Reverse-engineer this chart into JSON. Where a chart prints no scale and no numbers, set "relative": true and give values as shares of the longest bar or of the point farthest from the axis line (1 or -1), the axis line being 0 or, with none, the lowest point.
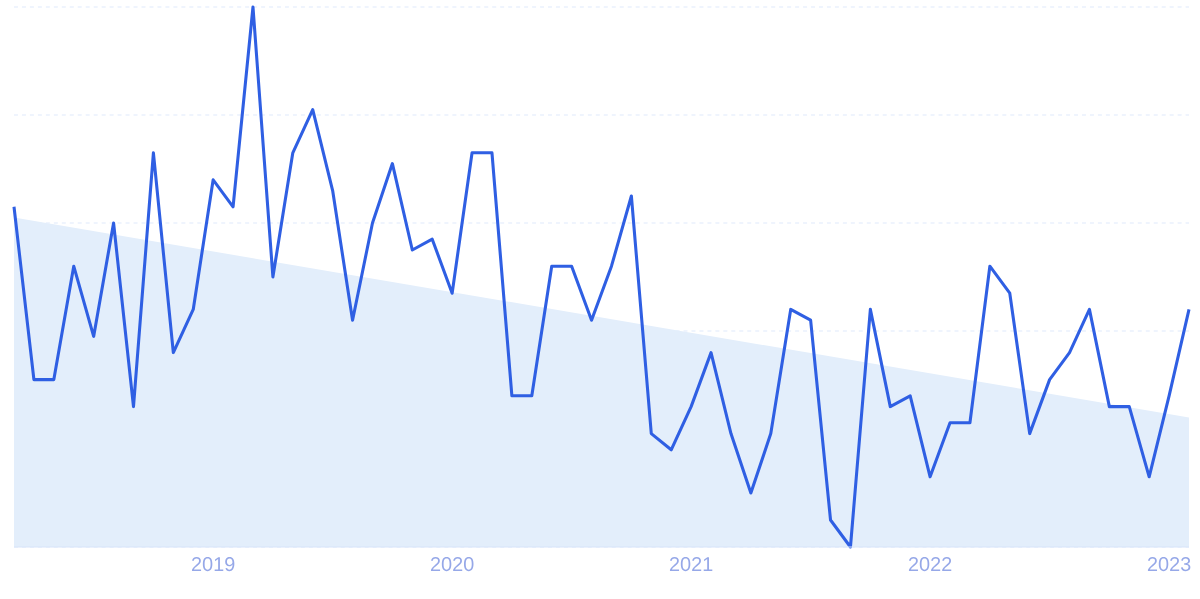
{
  "chart_data": {
    "type": "line",
    "relative": true,
    "grid": "y",
    "line_style": "solid",
    "x": [
      "2018-03",
      "2018-04",
      "2018-05",
      "2018-06",
      "2018-07",
      "2018-08",
      "2018-09",
      "2018-10",
      "2018-11",
      "2018-12",
      "2019-01",
      "2019-02",
      "2019-03",
      "2019-04",
      "2019-05",
      "2019-06",
      "2019-07",
      "2019-08",
      "2019-09",
      "2019-10",
      "2019-11",
      "2019-12",
      "2020-01",
      "2020-02",
      "2020-03",
      "2020-04",
      "2020-05",
      "2020-06",
      "2020-07",
      "2020-08",
      "2020-09",
      "2020-10",
      "2020-11",
      "2020-12",
      "2021-01",
      "2021-02",
      "2021-03",
      "2021-04",
      "2021-05",
      "2021-06",
      "2021-07",
      "2021-08",
      "2021-09",
      "2021-10",
      "2021-11",
      "2021-12",
      "2022-01",
      "2022-02",
      "2022-03",
      "2022-04",
      "2022-05",
      "2022-06",
      "2022-07",
      "2022-08",
      "2022-09",
      "2022-10",
      "2022-11",
      "2022-12",
      "2023-01",
      "2023-02"
    ],
    "xlim": [
      "2018-03",
      "2023-02"
    ],
    "xticks": [
      "2019",
      "2020",
      "2021",
      "2022",
      "2023"
    ],
    "series": [
      {
        "type": "area",
        "color": "#e3eefb",
        "x": [
          "2018-03",
          "2023-02"
        ],
        "values": [
          0.61,
          0.24
        ]
      },
      {
        "color": "#2f5fe3",
        "values": [
          0.63,
          0.31,
          0.31,
          0.52,
          0.39,
          0.6,
          0.26,
          0.73,
          0.36,
          0.44,
          0.68,
          0.63,
          1.0,
          0.5,
          0.73,
          0.81,
          0.66,
          0.42,
          0.6,
          0.71,
          0.55,
          0.57,
          0.47,
          0.73,
          0.73,
          0.28,
          0.28,
          0.52,
          0.52,
          0.42,
          0.52,
          0.65,
          0.21,
          0.18,
          0.26,
          0.36,
          0.21,
          0.1,
          0.21,
          0.44,
          0.42,
          0.05,
          0.0,
          0.44,
          0.26,
          0.28,
          0.13,
          0.23,
          0.23,
          0.52,
          0.47,
          0.21,
          0.31,
          0.36,
          0.44,
          0.26,
          0.26,
          0.13,
          0.28,
          0.44
        ]
      }
    ]
  }
}
